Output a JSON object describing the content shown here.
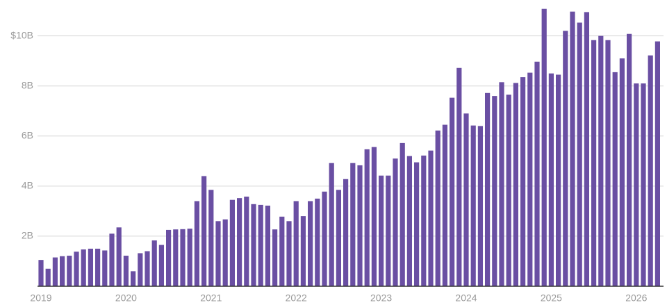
{
  "chart_data": {
    "type": "bar",
    "color": "#6a4fa3",
    "grid": true,
    "categories": [
      "2019",
      null,
      null,
      null,
      null,
      null,
      null,
      null,
      null,
      null,
      null,
      null,
      "2020",
      null,
      null,
      null,
      null,
      null,
      null,
      null,
      null,
      null,
      null,
      null,
      "2021",
      null,
      null,
      null,
      null,
      null,
      null,
      null,
      null,
      null,
      null,
      null,
      "2022",
      null,
      null,
      null,
      null,
      null,
      null,
      null,
      null,
      null,
      null,
      null,
      "2023",
      null,
      null,
      null,
      null,
      null,
      null,
      null,
      null,
      null,
      null,
      null,
      "2024",
      null,
      null,
      null,
      null,
      null,
      null,
      null,
      null,
      null,
      null,
      null,
      "2025",
      null,
      null,
      null,
      null,
      null,
      null,
      null,
      null,
      null,
      null,
      null,
      "2026",
      null,
      null,
      null
    ],
    "values": [
      1.05,
      0.7,
      1.15,
      1.2,
      1.22,
      1.38,
      1.47,
      1.5,
      1.5,
      1.43,
      2.1,
      2.35,
      1.22,
      0.6,
      1.32,
      1.4,
      1.83,
      1.65,
      2.25,
      2.27,
      2.28,
      2.3,
      3.4,
      4.4,
      3.85,
      2.6,
      2.67,
      3.45,
      3.52,
      3.58,
      3.28,
      3.25,
      3.22,
      2.27,
      2.78,
      2.6,
      3.4,
      2.8,
      3.4,
      3.5,
      3.78,
      4.92,
      3.85,
      4.28,
      4.92,
      4.83,
      5.47,
      5.56,
      4.42,
      4.42,
      5.1,
      5.72,
      5.2,
      4.95,
      5.22,
      5.42,
      6.22,
      6.45,
      7.53,
      8.72,
      6.9,
      6.42,
      6.4,
      7.72,
      7.6,
      8.15,
      7.65,
      8.12,
      8.35,
      8.53,
      8.97,
      11.08,
      8.5,
      8.45,
      10.2,
      10.97,
      10.53,
      10.95,
      9.83,
      10.0,
      9.83,
      8.55,
      9.1,
      10.08,
      8.1,
      8.1,
      9.22,
      9.78
    ],
    "ylim": [
      0,
      11.1
    ],
    "yticks": [
      {
        "value": 2,
        "label": "2B"
      },
      {
        "value": 4,
        "label": "4B"
      },
      {
        "value": 6,
        "label": "6B"
      },
      {
        "value": 8,
        "label": "8B"
      },
      {
        "value": 10,
        "label": "$10B"
      }
    ]
  }
}
